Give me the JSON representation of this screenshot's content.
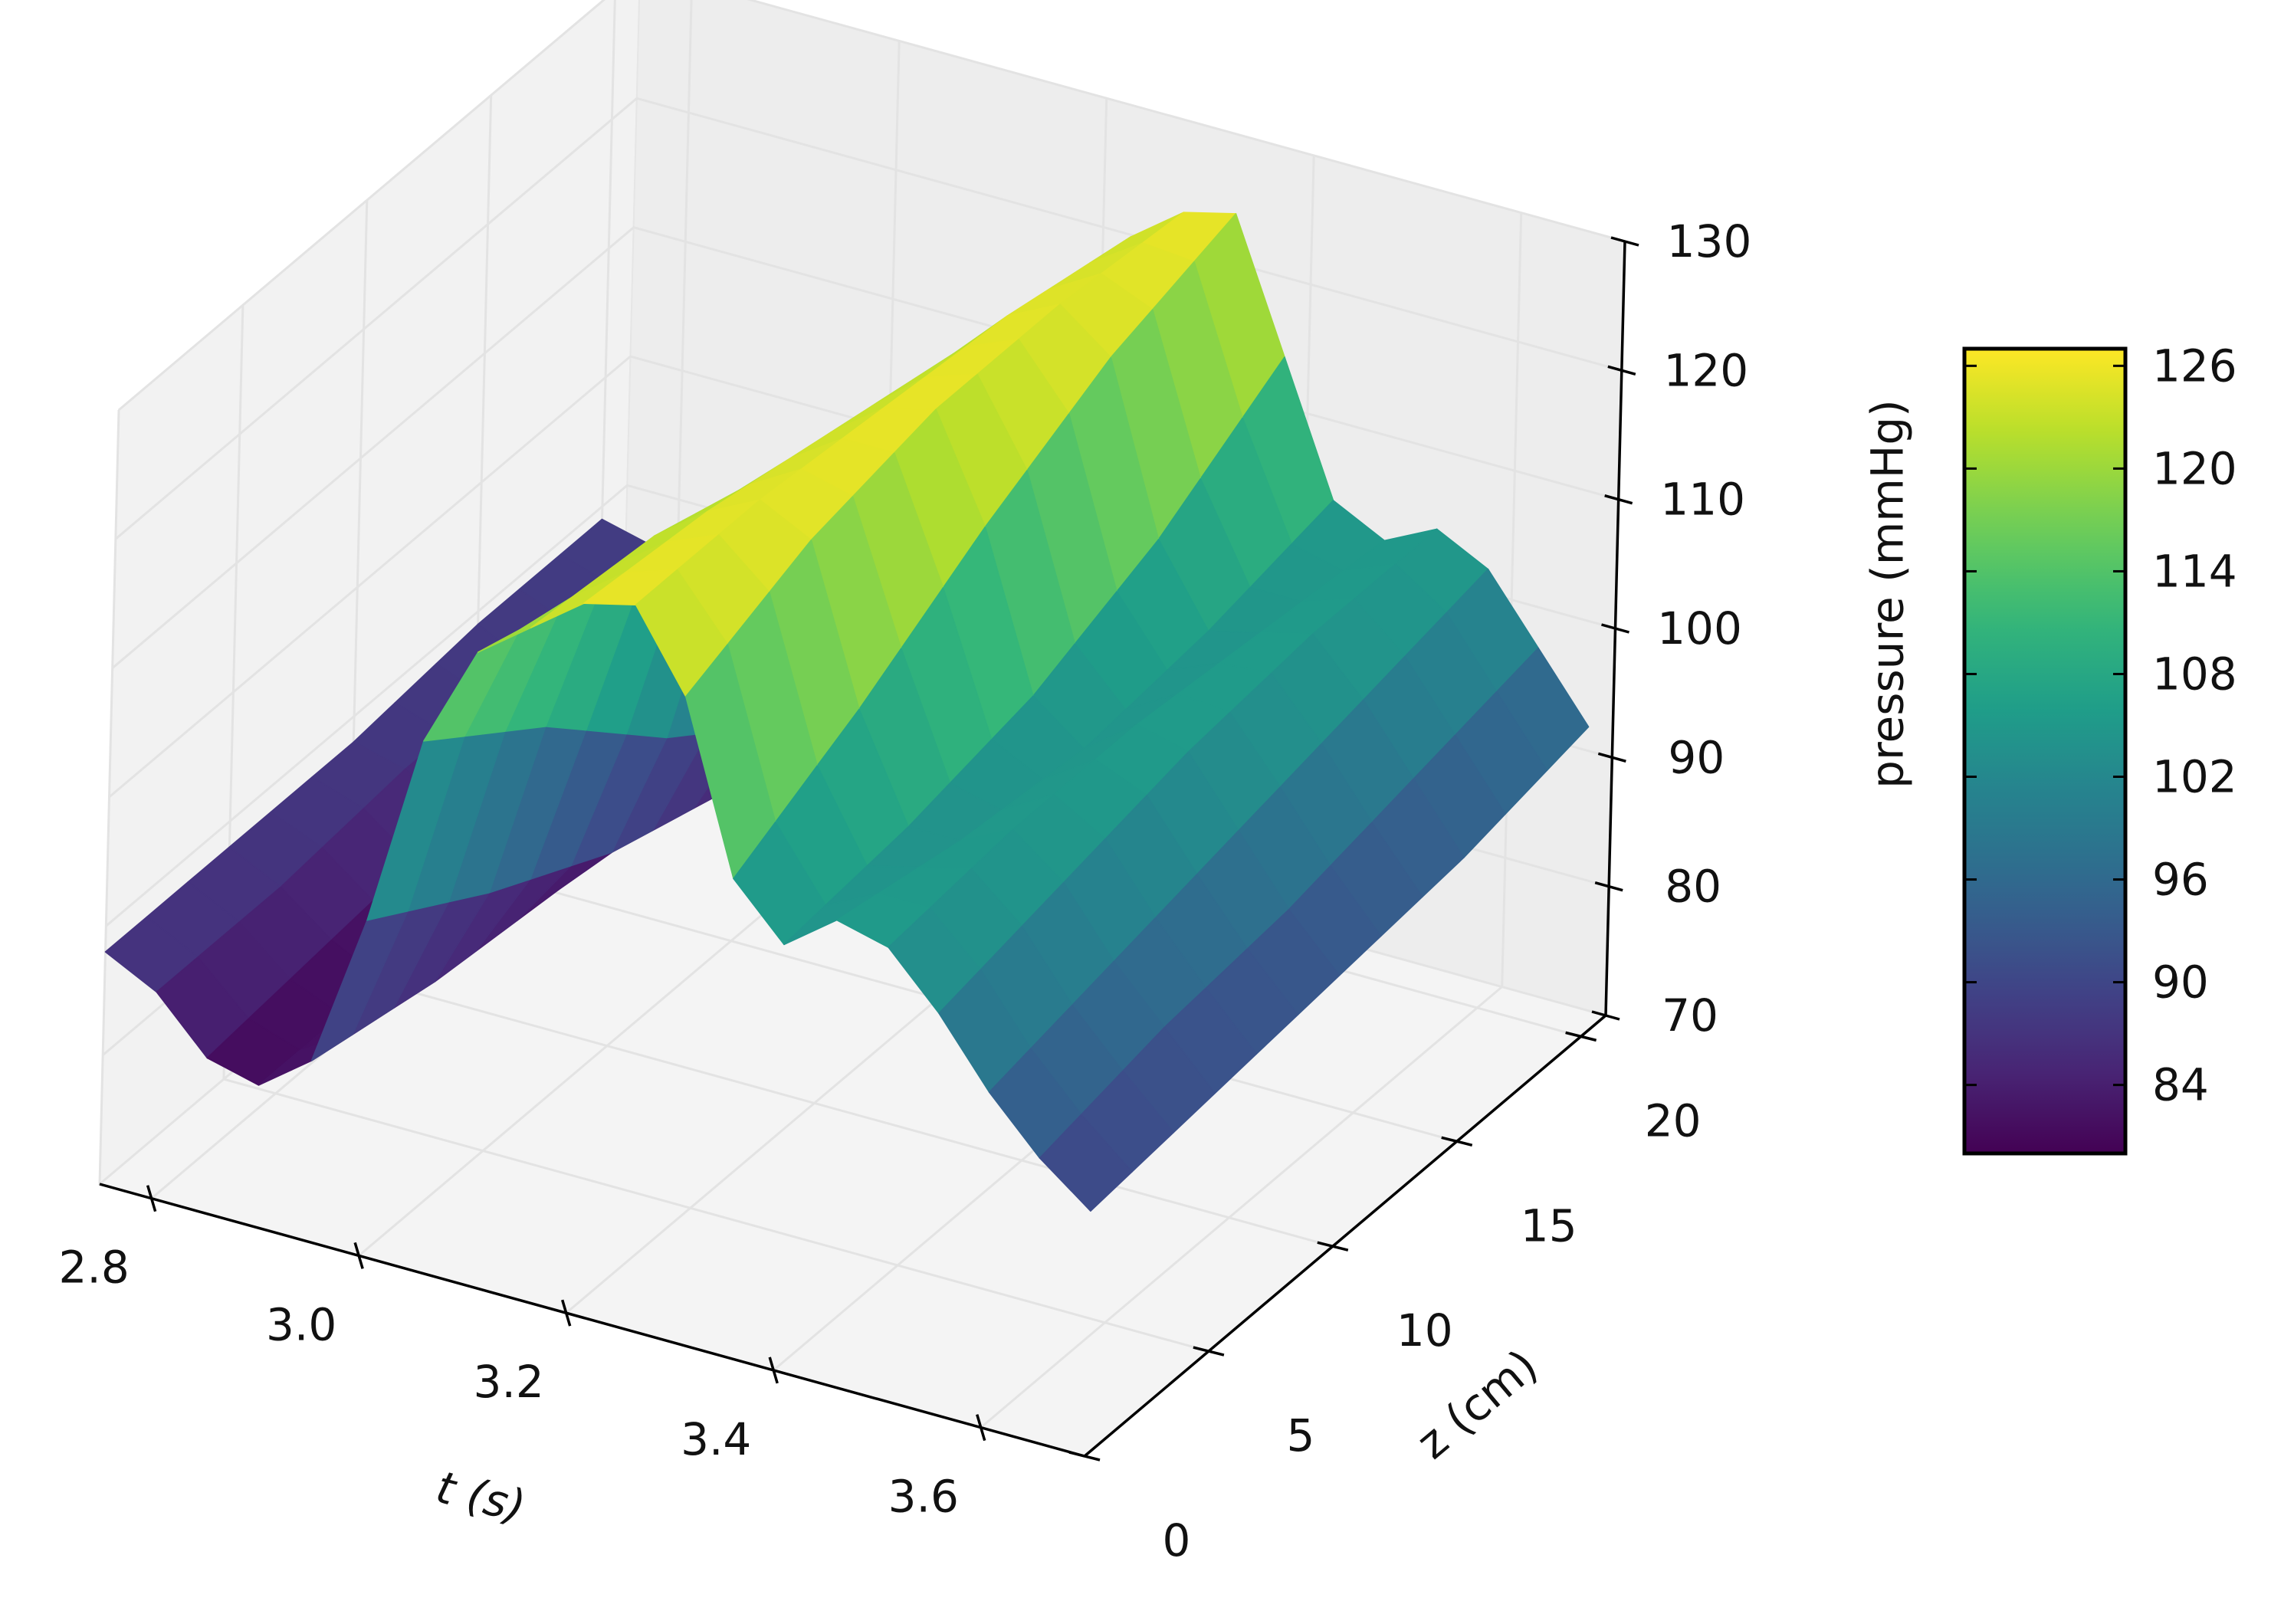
{
  "chart_data": {
    "type": "surface",
    "title": "",
    "xlabel": "t (s)",
    "ylabel": "z (cm)",
    "zlabel": "pressure (mmHg)",
    "colormap": "viridis",
    "colorbar": {
      "min": 80,
      "max": 127,
      "ticks": [
        84,
        90,
        96,
        102,
        108,
        114,
        120,
        126
      ]
    },
    "x_ticks": [
      2.8,
      3.0,
      3.2,
      3.4,
      3.6
    ],
    "x_tick_labels": [
      "2.8",
      "3.0",
      "3.2",
      "3.4",
      "3.6"
    ],
    "y_ticks": [
      0,
      5,
      10,
      15,
      20
    ],
    "y_tick_labels": [
      "0",
      "5",
      "10",
      "15",
      "20"
    ],
    "z_ticks": [
      70,
      80,
      90,
      100,
      110,
      120,
      130
    ],
    "z_tick_labels": [
      "70",
      "80",
      "90",
      "100",
      "110",
      "120",
      "130"
    ],
    "xlim": [
      2.75,
      3.7
    ],
    "ylim": [
      0,
      21
    ],
    "zlim": [
      70,
      130
    ],
    "grid": true,
    "t": [
      2.75,
      2.8,
      2.85,
      2.9,
      2.95,
      3.0,
      3.05,
      3.1,
      3.15,
      3.2,
      3.25,
      3.3,
      3.35,
      3.4,
      3.45,
      3.5,
      3.55,
      3.6,
      3.65,
      3.7
    ],
    "z": [
      0,
      5,
      10,
      15,
      20
    ],
    "pressure": [
      [
        88,
        86,
        82,
        81,
        84,
        96,
        111,
        119,
        122,
        125,
        126,
        120,
        107,
        103,
        106,
        105,
        101,
        96,
        92,
        89
      ],
      [
        88,
        86,
        83,
        81,
        82,
        90,
        104,
        116,
        121,
        124,
        126,
        124,
        112,
        104,
        104,
        106,
        103,
        98,
        94,
        90
      ],
      [
        88,
        87,
        84,
        82,
        81,
        85,
        95,
        110,
        118,
        122,
        125,
        126,
        118,
        106,
        103,
        106,
        105,
        100,
        95,
        91
      ],
      [
        89,
        87,
        85,
        83,
        82,
        82,
        88,
        101,
        113,
        120,
        124,
        126,
        123,
        110,
        104,
        105,
        106,
        102,
        97,
        92
      ],
      [
        89,
        88,
        86,
        84,
        83,
        82,
        84,
        93,
        106,
        116,
        122,
        125,
        126,
        116,
        106,
        104,
        106,
        104,
        99,
        94
      ]
    ]
  }
}
